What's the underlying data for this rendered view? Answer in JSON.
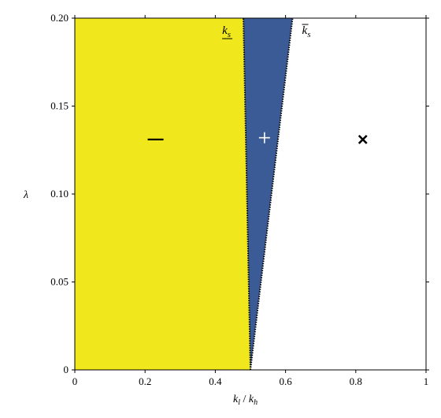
{
  "chart_data": {
    "type": "area",
    "xlabel": {
      "numerator": "k",
      "numerator_sub": "l",
      "slash": " / ",
      "denominator": "k",
      "denominator_sub": "h"
    },
    "ylabel": "λ",
    "xlim": [
      0,
      1
    ],
    "ylim": [
      0,
      0.2
    ],
    "x_ticks": [
      0,
      0.2,
      0.4,
      0.6,
      0.8,
      1
    ],
    "x_tick_labels": [
      "0",
      "0.2",
      "0.4",
      "0.6",
      "0.8",
      "1"
    ],
    "y_ticks": [
      0,
      0.05,
      0.1,
      0.15,
      0.2
    ],
    "y_tick_labels": [
      "0",
      "0.05",
      "0.10",
      "0.15",
      "0.20"
    ],
    "grid": false,
    "boundaries": [
      {
        "label": "k",
        "label_sub": "s",
        "decoration": "underline",
        "points": [
          [
            0.5,
            0
          ],
          [
            0.48,
            0.2
          ]
        ]
      },
      {
        "label": "k",
        "label_sub": "s",
        "decoration": "overline",
        "points": [
          [
            0.5,
            0
          ],
          [
            0.62,
            0.2
          ]
        ]
      }
    ],
    "regions": [
      {
        "symbol": "—",
        "color": "#f0e81c",
        "marker_at": [
          0.23,
          0.131
        ]
      },
      {
        "symbol": "+",
        "color": "#3b5b97",
        "marker_at": [
          0.54,
          0.132
        ]
      },
      {
        "symbol": "×",
        "color": "#ffffff",
        "marker_at": [
          0.82,
          0.131
        ]
      }
    ]
  }
}
